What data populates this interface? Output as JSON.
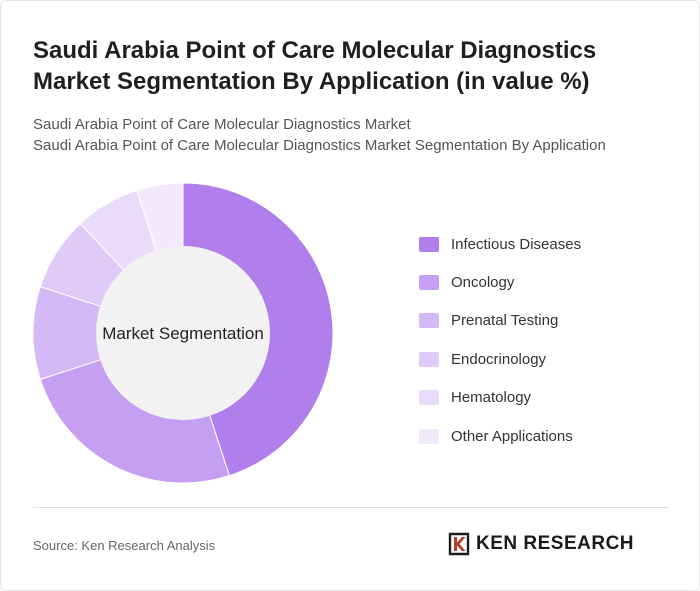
{
  "header": {
    "title": "Saudi Arabia Point of Care Molecular Diagnostics Market Segmentation By Application (in value %)",
    "subtitle_line1": "Saudi Arabia Point of Care Molecular Diagnostics Market",
    "subtitle_line2": "Saudi Arabia Point of Care Molecular Diagnostics Market Segmentation By Application"
  },
  "chart_data": {
    "type": "pie",
    "center_label": "Market Segmentation",
    "categories": [
      "Infectious Diseases",
      "Oncology",
      "Prenatal Testing",
      "Endocrinology",
      "Hematology",
      "Other Applications"
    ],
    "values": [
      45,
      25,
      10,
      8,
      7,
      5
    ],
    "colors": [
      "#b07fec",
      "#c59ff2",
      "#d5b8f6",
      "#e0cbf8",
      "#e9dbfa",
      "#f2eafc"
    ],
    "legend_position": "right"
  },
  "footer": {
    "source": "Source: Ken Research Analysis",
    "brand_name": "KEN RESEARCH",
    "brand_mark_icon": "ken-research-logo-icon"
  }
}
